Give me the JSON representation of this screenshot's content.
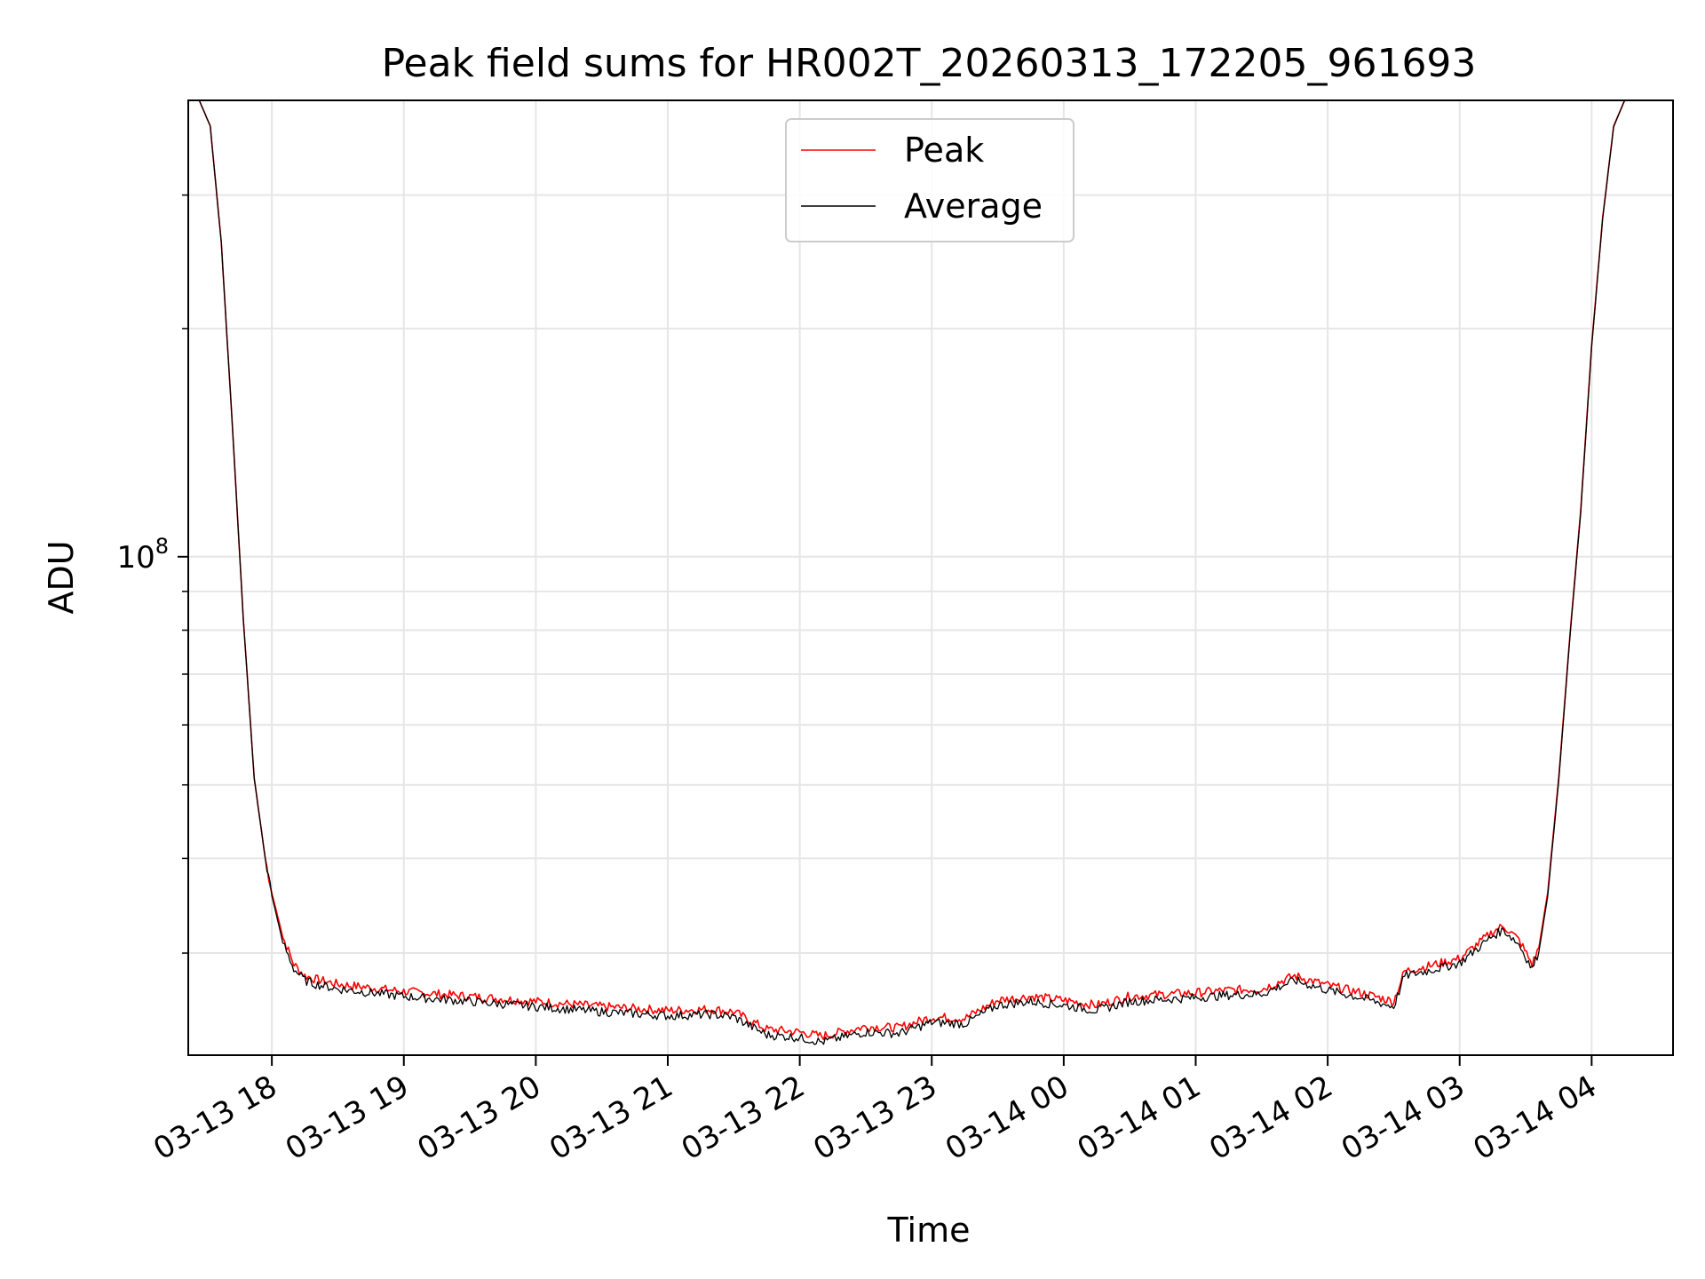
{
  "chart_data": {
    "type": "line",
    "title": "Peak field sums for HR002T_20260313_172205_961693",
    "xlabel": "Time",
    "ylabel": "ADU",
    "yscale": "log",
    "grid": true,
    "legend": {
      "location": "top-center",
      "entries": [
        "Peak",
        "Average"
      ]
    },
    "xlim": [
      "03-13 17:22",
      "03-14 04:37"
    ],
    "ylim": [
      22000000,
      400000000
    ],
    "x_ticks": [
      "03-13 18",
      "03-13 19",
      "03-13 20",
      "03-13 21",
      "03-13 22",
      "03-13 23",
      "03-14 00",
      "03-14 01",
      "03-14 02",
      "03-14 03",
      "03-14 04"
    ],
    "y_major_tick": {
      "value": 100000000,
      "base": "10",
      "exp": "8"
    },
    "y_minor_ticks": [
      30000000,
      40000000,
      50000000,
      60000000,
      70000000,
      80000000,
      90000000,
      200000000,
      300000000
    ],
    "x": [
      "03-13 17:22",
      "03-13 17:27",
      "03-13 17:32",
      "03-13 17:37",
      "03-13 17:42",
      "03-13 17:47",
      "03-13 17:52",
      "03-13 17:57",
      "03-13 18:00",
      "03-13 18:05",
      "03-13 18:10",
      "03-13 18:15",
      "03-13 18:20",
      "03-13 18:30",
      "03-13 18:45",
      "03-13 19:00",
      "03-13 19:30",
      "03-13 20:00",
      "03-13 20:30",
      "03-13 21:00",
      "03-13 21:20",
      "03-13 21:30",
      "03-13 21:45",
      "03-13 22:00",
      "03-13 22:10",
      "03-13 22:30",
      "03-13 22:45",
      "03-13 23:00",
      "03-13 23:15",
      "03-13 23:30",
      "03-13 23:45",
      "03-14 00:00",
      "03-14 00:15",
      "03-14 00:30",
      "03-14 01:00",
      "03-14 01:15",
      "03-14 01:30",
      "03-14 01:45",
      "03-14 02:00",
      "03-14 02:15",
      "03-14 02:30",
      "03-14 02:35",
      "03-14 02:45",
      "03-14 03:00",
      "03-14 03:15",
      "03-14 03:20",
      "03-14 03:27",
      "03-14 03:33",
      "03-14 03:36",
      "03-14 03:40",
      "03-14 03:45",
      "03-14 03:50",
      "03-14 03:55",
      "03-14 04:00",
      "03-14 04:05",
      "03-14 04:10",
      "03-14 04:15",
      "03-14 04:20",
      "03-14 04:25",
      "03-14 04:30",
      "03-14 04:37"
    ],
    "series": [
      {
        "name": "Peak",
        "color": "#ff0000",
        "values": [
          400000000,
          400000000,
          370000000,
          260000000,
          150000000,
          83000000,
          51000000,
          40000000,
          36000000,
          31500000,
          29000000,
          28000000,
          27700000,
          27300000,
          27000000,
          26700000,
          26300000,
          25900000,
          25500000,
          25200000,
          25300000,
          25100000,
          23800000,
          23600000,
          23300000,
          24000000,
          23900000,
          24700000,
          24600000,
          26000000,
          26300000,
          26000000,
          25600000,
          26300000,
          26600000,
          26800000,
          26900000,
          28000000,
          27200000,
          26600000,
          25900000,
          28400000,
          28800000,
          29500000,
          32000000,
          32600000,
          31200000,
          29000000,
          30500000,
          36000000,
          51000000,
          78000000,
          115000000,
          190000000,
          280000000,
          370000000,
          400000000,
          400000000,
          400000000,
          400000000,
          400000000
        ]
      },
      {
        "name": "Average",
        "color": "#000000",
        "values": [
          400000000,
          400000000,
          370000000,
          260000000,
          150000000,
          83000000,
          51000000,
          40000000,
          35700000,
          31000000,
          28600000,
          27600000,
          27300000,
          26900000,
          26600000,
          26300000,
          25900000,
          25500000,
          25100000,
          24800000,
          24900000,
          24700000,
          23400000,
          23200000,
          22900000,
          23600000,
          23500000,
          24300000,
          24200000,
          25600000,
          25900000,
          25600000,
          25200000,
          25900000,
          26200000,
          26400000,
          26500000,
          27600000,
          26800000,
          26200000,
          25500000,
          28000000,
          28400000,
          29100000,
          31600000,
          32200000,
          30800000,
          28600000,
          30100000,
          35600000,
          50500000,
          77500000,
          114000000,
          189000000,
          279000000,
          369000000,
          400000000,
          400000000,
          400000000,
          400000000,
          400000000
        ]
      }
    ]
  }
}
